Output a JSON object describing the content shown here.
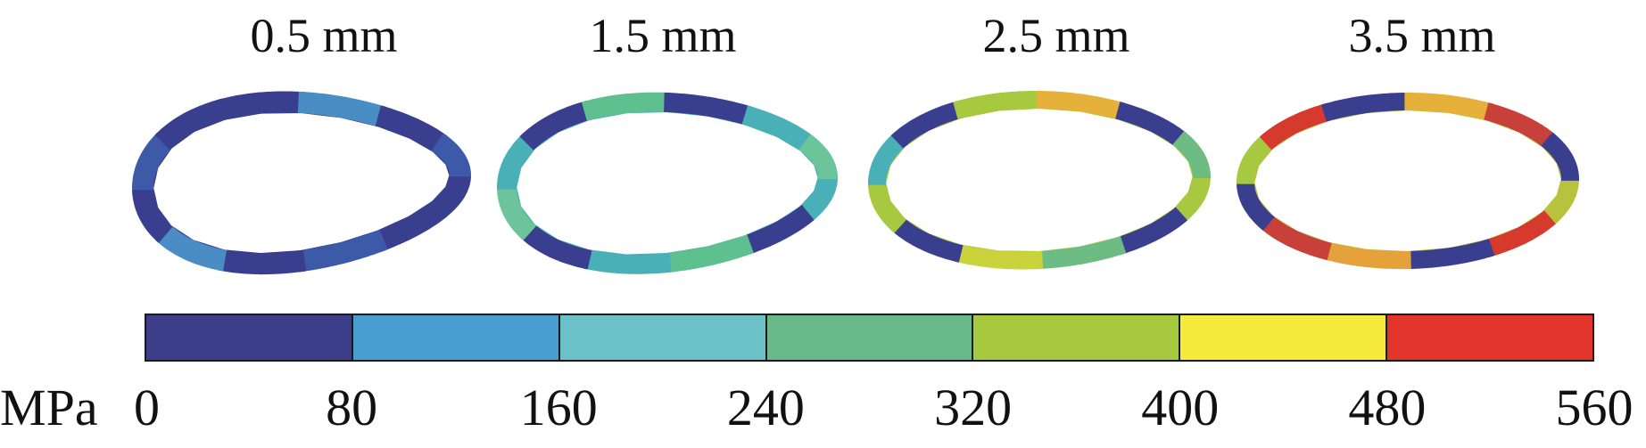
{
  "panels": [
    {
      "label": "0.5 mm",
      "colors": [
        "#3a3e8f",
        "#3a3e8f",
        "#3d5aa8",
        "#3a3e8f",
        "#4a8cc4",
        "#3a3e8f",
        "#3d5aa8",
        "#3a3e8f",
        "#3a3e8f",
        "#4a8cc4",
        "#3a3e8f",
        "#3d5aa8"
      ]
    },
    {
      "label": "1.5 mm",
      "colors": [
        "#4ab0b8",
        "#3a3e8f",
        "#5ec08e",
        "#4ab0b8",
        "#3a3e8f",
        "#6cc49a",
        "#4ab0b8",
        "#3a3e8f",
        "#5ec08e",
        "#3a3e8f",
        "#4ab0b8",
        "#6cc49a"
      ]
    },
    {
      "label": "2.5 mm",
      "colors": [
        "#a6c93f",
        "#3a3e8f",
        "#6cbc84",
        "#cbd33c",
        "#3a3e8f",
        "#a6c93f",
        "#4ab0b8",
        "#3a3e8f",
        "#a6c93f",
        "#e6b13a",
        "#3a3e8f",
        "#6cbc84"
      ]
    },
    {
      "label": "3.5 mm",
      "colors": [
        "#b8c23c",
        "#d63a2c",
        "#3a3e8f",
        "#e6a23a",
        "#c7403a",
        "#3a3e8f",
        "#a6c93f",
        "#d63a2c",
        "#3a3e8f",
        "#e6b13a",
        "#c7403a",
        "#3a3e8f"
      ]
    }
  ],
  "scale": {
    "unit": "MPa",
    "ticks": [
      "0",
      "80",
      "160",
      "240",
      "320",
      "400",
      "480",
      "560"
    ],
    "colors": [
      "#3c3e8a",
      "#489ed0",
      "#6cc0c8",
      "#68b88a",
      "#a6c940",
      "#f6eb3c",
      "#e3342c"
    ]
  }
}
